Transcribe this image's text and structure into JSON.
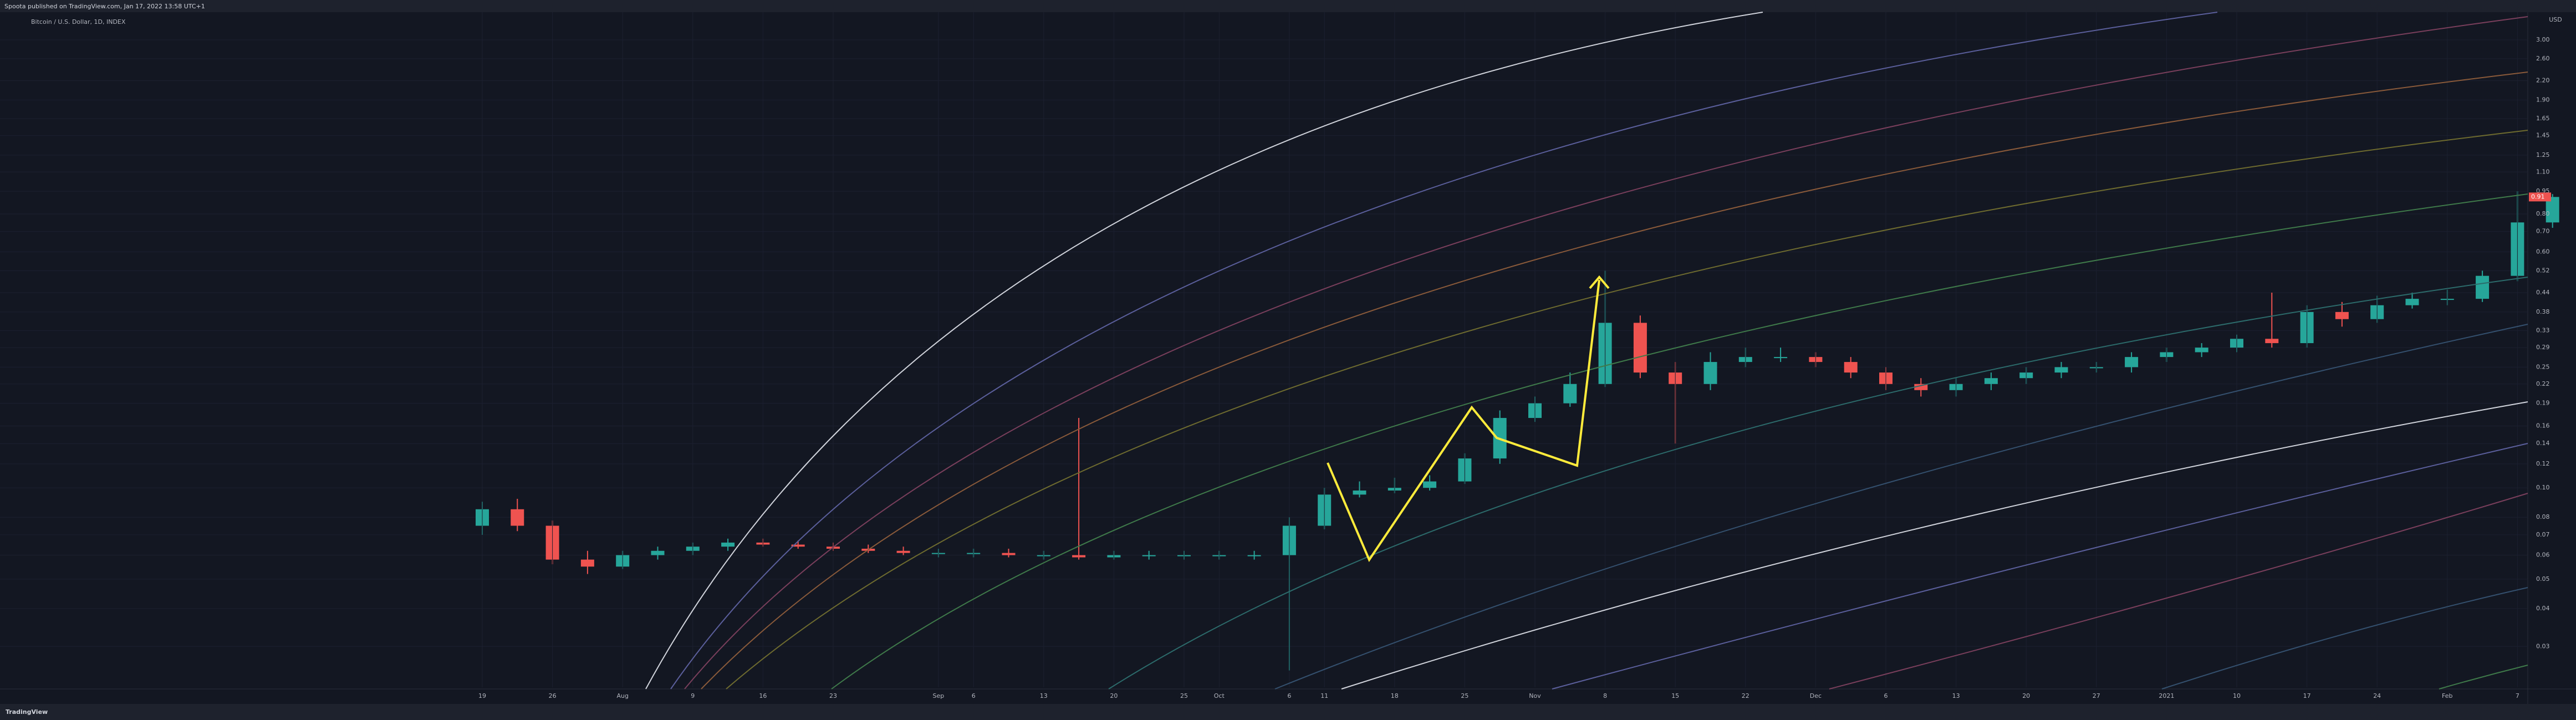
{
  "published": "Spoota published on TradingView.com, Jan 17, 2022 13:58 UTC+1",
  "footer": "TradingView",
  "chart_data": {
    "type": "candlestick",
    "title": "Bitcoin / U.S. Dollar, 1D, INDEX",
    "y_unit": "USD",
    "log_scale": true,
    "grid": true,
    "up_color": "#26a69a",
    "down_color": "#ef5350",
    "last_price": 0.91,
    "categories": [
      "19",
      null,
      "26",
      null,
      "Aug",
      null,
      "9",
      null,
      "16",
      null,
      "23",
      null,
      null,
      "Sep",
      "6",
      null,
      "13",
      null,
      "20",
      null,
      "25",
      "Oct",
      null,
      "6",
      "11",
      null,
      "18",
      null,
      "25",
      null,
      "Nov",
      null,
      "8",
      null,
      "15",
      null,
      "22",
      null,
      "Dec",
      null,
      "6",
      null,
      "13",
      null,
      "20",
      null,
      "27",
      null,
      "2021",
      null,
      "10",
      null,
      "17",
      null,
      "24",
      null,
      "Feb",
      null,
      "7",
      null
    ],
    "open": [
      0.075,
      0.085,
      0.075,
      0.058,
      0.055,
      0.06,
      0.062,
      0.064,
      0.066,
      0.065,
      0.064,
      0.063,
      0.062,
      0.061,
      0.061,
      0.061,
      0.06,
      0.06,
      0.059,
      0.06,
      0.06,
      0.06,
      0.06,
      0.06,
      0.075,
      0.095,
      0.098,
      0.1,
      0.105,
      0.125,
      0.17,
      0.19,
      0.22,
      0.35,
      0.24,
      0.22,
      0.26,
      0.27,
      0.27,
      0.26,
      0.24,
      0.22,
      0.21,
      0.22,
      0.23,
      0.24,
      0.25,
      0.25,
      0.27,
      0.28,
      0.29,
      0.31,
      0.3,
      0.38,
      0.36,
      0.4,
      0.42,
      0.42,
      0.5,
      0.75
    ],
    "high": [
      0.09,
      0.092,
      0.078,
      0.062,
      0.062,
      0.064,
      0.066,
      0.068,
      0.068,
      0.067,
      0.066,
      0.065,
      0.064,
      0.063,
      0.063,
      0.063,
      0.062,
      0.17,
      0.062,
      0.062,
      0.062,
      0.062,
      0.062,
      0.08,
      0.1,
      0.105,
      0.108,
      0.11,
      0.13,
      0.18,
      0.2,
      0.24,
      0.52,
      0.37,
      0.26,
      0.28,
      0.29,
      0.29,
      0.28,
      0.27,
      0.25,
      0.23,
      0.23,
      0.24,
      0.25,
      0.26,
      0.26,
      0.28,
      0.29,
      0.3,
      0.32,
      0.44,
      0.4,
      0.41,
      0.43,
      0.44,
      0.45,
      0.52,
      0.95,
      0.93
    ],
    "low": [
      0.07,
      0.072,
      0.056,
      0.052,
      0.054,
      0.058,
      0.06,
      0.062,
      0.064,
      0.063,
      0.062,
      0.061,
      0.06,
      0.059,
      0.059,
      0.059,
      0.058,
      0.058,
      0.058,
      0.058,
      0.058,
      0.058,
      0.058,
      0.025,
      0.073,
      0.093,
      0.096,
      0.098,
      0.103,
      0.12,
      0.165,
      0.185,
      0.215,
      0.23,
      0.14,
      0.21,
      0.25,
      0.26,
      0.25,
      0.23,
      0.21,
      0.2,
      0.2,
      0.21,
      0.22,
      0.23,
      0.24,
      0.24,
      0.26,
      0.27,
      0.28,
      0.29,
      0.29,
      0.34,
      0.35,
      0.39,
      0.4,
      0.41,
      0.48,
      0.72
    ],
    "close": [
      0.085,
      0.075,
      0.058,
      0.055,
      0.06,
      0.062,
      0.064,
      0.066,
      0.065,
      0.064,
      0.063,
      0.062,
      0.061,
      0.061,
      0.061,
      0.06,
      0.06,
      0.059,
      0.06,
      0.06,
      0.06,
      0.06,
      0.06,
      0.075,
      0.095,
      0.098,
      0.1,
      0.105,
      0.125,
      0.17,
      0.19,
      0.22,
      0.35,
      0.24,
      0.22,
      0.26,
      0.27,
      0.27,
      0.26,
      0.24,
      0.22,
      0.21,
      0.22,
      0.23,
      0.24,
      0.25,
      0.25,
      0.27,
      0.28,
      0.29,
      0.31,
      0.3,
      0.38,
      0.36,
      0.4,
      0.42,
      0.42,
      0.5,
      0.75,
      0.91
    ],
    "ylim": [
      0.022,
      3.7
    ],
    "yticks": [
      {
        "value": 3,
        "label": "3.00"
      },
      {
        "value": 2.6,
        "label": "2.60"
      },
      {
        "value": 2.2,
        "label": "2.20"
      },
      {
        "value": 1.9,
        "label": "1.90"
      },
      1.65,
      1.45,
      1.25,
      {
        "value": 1.1,
        "label": "1.10"
      },
      0.95,
      {
        "value": 0.8,
        "label": "0.80"
      },
      {
        "value": 0.7,
        "label": "0.70"
      },
      {
        "value": 0.6,
        "label": "0.60"
      },
      0.52,
      0.44,
      0.38,
      0.33,
      0.29,
      0.25,
      0.22,
      0.19,
      0.16,
      0.14,
      0.12,
      {
        "value": 0.1,
        "label": "0.10"
      },
      0.08,
      0.07,
      0.06,
      0.05,
      0.04,
      0.03
    ]
  }
}
